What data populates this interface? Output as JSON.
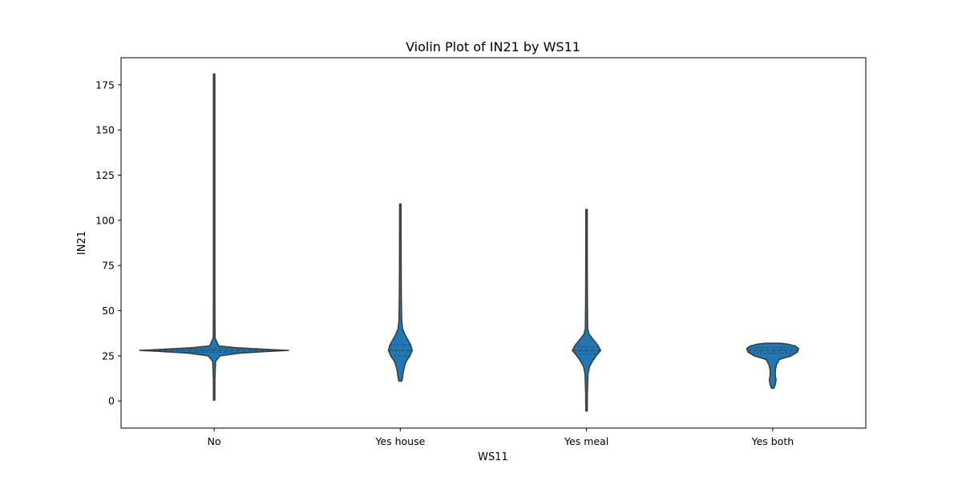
{
  "chart_data": {
    "type": "violin",
    "title": "Violin Plot of IN21 by WS11",
    "xlabel": "WS11",
    "ylabel": "IN21",
    "categories": [
      "No",
      "Yes house",
      "Yes meal",
      "Yes both"
    ],
    "ylim": [
      -15,
      190
    ],
    "yticks": [
      0,
      25,
      50,
      75,
      100,
      125,
      150,
      175
    ],
    "grid": false,
    "fill_color": "#1f77b4",
    "edge_color": "#3a3a3a",
    "violins": [
      {
        "category": "No",
        "min": 0.5,
        "max": 181,
        "q1": 27,
        "median": 28,
        "q3": 29,
        "profile": [
          [
            0.5,
            0.005
          ],
          [
            12,
            0.01
          ],
          [
            22,
            0.02
          ],
          [
            25,
            0.08
          ],
          [
            26.5,
            0.35
          ],
          [
            27.5,
            0.75
          ],
          [
            28,
            1.0
          ],
          [
            28.5,
            0.75
          ],
          [
            29.5,
            0.3
          ],
          [
            30.5,
            0.06
          ],
          [
            35,
            0.012
          ],
          [
            60,
            0.008
          ],
          [
            120,
            0.006
          ],
          [
            181,
            0.004
          ]
        ]
      },
      {
        "category": "Yes house",
        "min": 11,
        "max": 109,
        "q1": 25,
        "median": 28,
        "q3": 31,
        "profile": [
          [
            11,
            0.02
          ],
          [
            13,
            0.03
          ],
          [
            16,
            0.04
          ],
          [
            19,
            0.055
          ],
          [
            22,
            0.08
          ],
          [
            25,
            0.13
          ],
          [
            28,
            0.16
          ],
          [
            31,
            0.14
          ],
          [
            34,
            0.1
          ],
          [
            37,
            0.06
          ],
          [
            40,
            0.03
          ],
          [
            45,
            0.018
          ],
          [
            60,
            0.013
          ],
          [
            80,
            0.011
          ],
          [
            109,
            0.008
          ]
        ]
      },
      {
        "category": "Yes meal",
        "min": -5.5,
        "max": 106,
        "q1": 26,
        "median": 28,
        "q3": 30,
        "profile": [
          [
            -5.5,
            0.006
          ],
          [
            5,
            0.012
          ],
          [
            15,
            0.02
          ],
          [
            19,
            0.04
          ],
          [
            22,
            0.08
          ],
          [
            25,
            0.13
          ],
          [
            28,
            0.19
          ],
          [
            31,
            0.15
          ],
          [
            34,
            0.09
          ],
          [
            37,
            0.035
          ],
          [
            40,
            0.016
          ],
          [
            55,
            0.012
          ],
          [
            80,
            0.01
          ],
          [
            106,
            0.008
          ]
        ]
      },
      {
        "category": "Yes both",
        "min": 7,
        "max": 32,
        "q1": 26.5,
        "median": 28,
        "q3": 29.5,
        "profile": [
          [
            7,
            0.015
          ],
          [
            8.5,
            0.03
          ],
          [
            10,
            0.04
          ],
          [
            12,
            0.045
          ],
          [
            14,
            0.035
          ],
          [
            17,
            0.035
          ],
          [
            20,
            0.05
          ],
          [
            23,
            0.09
          ],
          [
            25,
            0.25
          ],
          [
            27,
            0.33
          ],
          [
            29,
            0.35
          ],
          [
            30.5,
            0.3
          ],
          [
            31.5,
            0.2
          ],
          [
            32,
            0.1
          ]
        ]
      }
    ]
  }
}
